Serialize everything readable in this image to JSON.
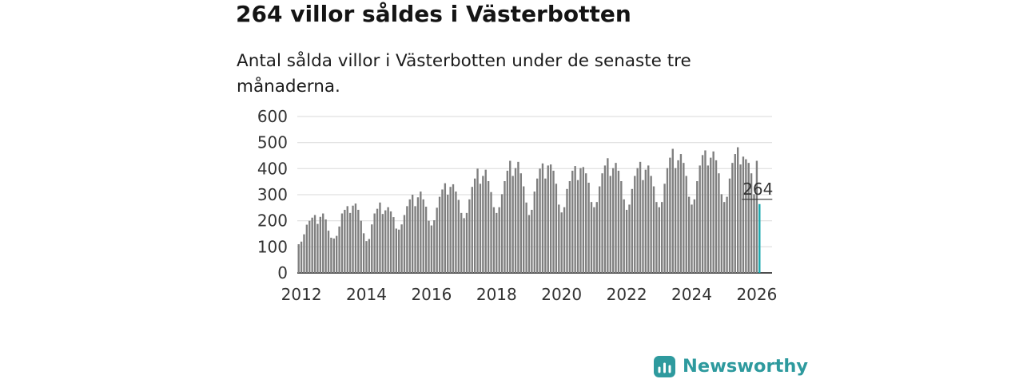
{
  "header": {
    "title": "264 villor såldes i Västerbotten",
    "subtitle": "Antal sålda villor i Västerbotten under de senaste tre månaderna."
  },
  "chart_data": {
    "type": "bar",
    "title": "264 villor såldes i Västerbotten",
    "subtitle": "Antal sålda villor i Västerbotten under de senaste tre månaderna.",
    "xlabel": "",
    "ylabel": "",
    "ylim": [
      0,
      600
    ],
    "yticks": [
      0,
      100,
      200,
      300,
      400,
      500,
      600
    ],
    "xticks": [
      2012,
      2014,
      2016,
      2018,
      2020,
      2022,
      2024,
      2026
    ],
    "x_start": "2011-12",
    "x_unit": "month",
    "grid": "horizontal",
    "bar_color": "#7f7f7f",
    "values": [
      110,
      120,
      148,
      185,
      200,
      212,
      222,
      188,
      215,
      228,
      205,
      162,
      135,
      132,
      142,
      178,
      228,
      242,
      256,
      230,
      258,
      266,
      242,
      200,
      152,
      122,
      130,
      186,
      228,
      246,
      270,
      226,
      240,
      252,
      236,
      214,
      170,
      166,
      186,
      222,
      256,
      282,
      300,
      256,
      290,
      312,
      282,
      254,
      200,
      182,
      202,
      250,
      292,
      320,
      344,
      300,
      330,
      340,
      312,
      280,
      230,
      210,
      230,
      282,
      330,
      362,
      400,
      342,
      372,
      396,
      352,
      310,
      252,
      230,
      252,
      302,
      352,
      392,
      430,
      372,
      402,
      426,
      382,
      332,
      270,
      222,
      242,
      312,
      362,
      400,
      420,
      362,
      412,
      416,
      392,
      342,
      262,
      232,
      252,
      322,
      352,
      392,
      410,
      356,
      402,
      406,
      382,
      346,
      272,
      252,
      272,
      332,
      382,
      412,
      440,
      372,
      402,
      422,
      392,
      352,
      282,
      242,
      262,
      322,
      372,
      402,
      426,
      356,
      396,
      412,
      372,
      332,
      272,
      252,
      272,
      342,
      402,
      442,
      476,
      402,
      432,
      456,
      422,
      372,
      292,
      262,
      282,
      352,
      412,
      452,
      470,
      412,
      442,
      466,
      432,
      382,
      302,
      272,
      292,
      362,
      422,
      456,
      482,
      416,
      446,
      436,
      422,
      382,
      302,
      430,
      264
    ],
    "highlight": {
      "index": 170,
      "value": 264,
      "label": "264",
      "color": "#17A8AE"
    }
  },
  "footer": {
    "brand": "Newsworthy",
    "brand_color": "#2E9A9E"
  }
}
